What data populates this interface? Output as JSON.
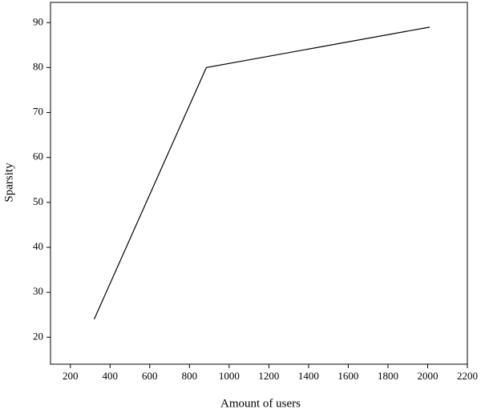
{
  "chart_data": {
    "type": "line",
    "x_label": "Amount of users",
    "y_label": "Sparsity",
    "x": [
      320,
      885,
      2010
    ],
    "values": [
      24,
      80,
      89
    ],
    "color": "#000000",
    "xlim": [
      100,
      2200
    ],
    "xticks": [
      200,
      400,
      600,
      800,
      1000,
      1200,
      1400,
      1600,
      1800,
      2000,
      2200
    ],
    "ylim": [
      14,
      94.5
    ],
    "yticks": [
      20,
      30,
      40,
      50,
      60,
      70,
      80,
      90
    ]
  }
}
